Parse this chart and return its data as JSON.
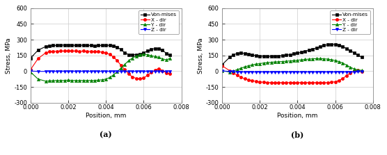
{
  "panel_a": {
    "von_mises": {
      "x": [
        0.0,
        0.0004,
        0.0008,
        0.001,
        0.0012,
        0.0014,
        0.0016,
        0.0018,
        0.002,
        0.0022,
        0.0024,
        0.0026,
        0.0028,
        0.003,
        0.0032,
        0.0034,
        0.0036,
        0.0038,
        0.004,
        0.0042,
        0.0044,
        0.0046,
        0.0048,
        0.005,
        0.0052,
        0.0054,
        0.0056,
        0.0058,
        0.006,
        0.0062,
        0.0064,
        0.0066,
        0.0068,
        0.007,
        0.0072,
        0.0074
      ],
      "y": [
        125,
        200,
        235,
        240,
        245,
        245,
        248,
        248,
        250,
        248,
        245,
        245,
        248,
        245,
        245,
        240,
        245,
        245,
        248,
        245,
        240,
        230,
        205,
        175,
        158,
        155,
        158,
        162,
        175,
        192,
        208,
        215,
        215,
        200,
        170,
        152
      ]
    },
    "x_dir": {
      "x": [
        0.0,
        0.0004,
        0.0008,
        0.001,
        0.0012,
        0.0014,
        0.0016,
        0.0018,
        0.002,
        0.0022,
        0.0024,
        0.0026,
        0.0028,
        0.003,
        0.0032,
        0.0034,
        0.0036,
        0.0038,
        0.004,
        0.0042,
        0.0044,
        0.0046,
        0.0048,
        0.005,
        0.0052,
        0.0054,
        0.0056,
        0.0058,
        0.006,
        0.0062,
        0.0064,
        0.0066,
        0.0068,
        0.007,
        0.0072,
        0.0074
      ],
      "y": [
        15,
        120,
        175,
        185,
        190,
        190,
        192,
        192,
        195,
        192,
        192,
        190,
        192,
        190,
        188,
        185,
        185,
        182,
        175,
        160,
        135,
        100,
        55,
        15,
        -25,
        -55,
        -68,
        -72,
        -65,
        -40,
        -12,
        10,
        25,
        5,
        -15,
        -22
      ]
    },
    "y_dir": {
      "x": [
        0.0,
        0.0004,
        0.0008,
        0.001,
        0.0012,
        0.0014,
        0.0016,
        0.0018,
        0.002,
        0.0022,
        0.0024,
        0.0026,
        0.0028,
        0.003,
        0.0032,
        0.0034,
        0.0036,
        0.0038,
        0.004,
        0.0042,
        0.0044,
        0.0046,
        0.0048,
        0.005,
        0.0052,
        0.0054,
        0.0056,
        0.0058,
        0.006,
        0.0062,
        0.0064,
        0.0066,
        0.0068,
        0.007,
        0.0072,
        0.0074
      ],
      "y": [
        -8,
        -75,
        -95,
        -92,
        -90,
        -88,
        -88,
        -88,
        -85,
        -88,
        -88,
        -88,
        -88,
        -88,
        -88,
        -88,
        -85,
        -82,
        -75,
        -60,
        -35,
        -5,
        30,
        65,
        100,
        125,
        145,
        158,
        162,
        158,
        148,
        140,
        132,
        118,
        108,
        122
      ]
    },
    "z_dir": {
      "x": [
        0.0,
        0.0004,
        0.0008,
        0.001,
        0.0012,
        0.0014,
        0.0016,
        0.0018,
        0.002,
        0.0022,
        0.0024,
        0.0026,
        0.0028,
        0.003,
        0.0032,
        0.0034,
        0.0036,
        0.0038,
        0.004,
        0.0042,
        0.0044,
        0.0046,
        0.0048,
        0.005,
        0.0052,
        0.0054,
        0.0056,
        0.0058,
        0.006,
        0.0062,
        0.0064,
        0.0066,
        0.0068,
        0.007,
        0.0072,
        0.0074
      ],
      "y": [
        2,
        -2,
        -2,
        -2,
        -2,
        -2,
        -2,
        -2,
        -2,
        -2,
        -2,
        -2,
        -2,
        -2,
        -2,
        -2,
        -2,
        -2,
        -2,
        -2,
        -2,
        -2,
        -2,
        -2,
        -2,
        -2,
        -2,
        -2,
        -2,
        -2,
        -2,
        -2,
        -2,
        -2,
        -2,
        -2
      ]
    }
  },
  "panel_b": {
    "von_mises": {
      "x": [
        0.0,
        0.0004,
        0.0006,
        0.0008,
        0.001,
        0.0012,
        0.0014,
        0.0016,
        0.0018,
        0.002,
        0.0022,
        0.0024,
        0.0026,
        0.0028,
        0.003,
        0.0032,
        0.0034,
        0.0036,
        0.0038,
        0.004,
        0.0042,
        0.0044,
        0.0046,
        0.0048,
        0.005,
        0.0052,
        0.0054,
        0.0056,
        0.0058,
        0.006,
        0.0062,
        0.0064,
        0.0066,
        0.0068,
        0.007,
        0.0072,
        0.0074
      ],
      "y": [
        62,
        132,
        158,
        168,
        172,
        170,
        162,
        155,
        148,
        145,
        143,
        142,
        142,
        143,
        145,
        148,
        152,
        158,
        165,
        172,
        180,
        190,
        200,
        210,
        222,
        235,
        245,
        252,
        255,
        255,
        248,
        235,
        215,
        195,
        175,
        155,
        132
      ]
    },
    "x_dir": {
      "x": [
        0.0,
        0.0004,
        0.0006,
        0.0008,
        0.001,
        0.0012,
        0.0014,
        0.0016,
        0.0018,
        0.002,
        0.0022,
        0.0024,
        0.0026,
        0.0028,
        0.003,
        0.0032,
        0.0034,
        0.0036,
        0.0038,
        0.004,
        0.0042,
        0.0044,
        0.0046,
        0.0048,
        0.005,
        0.0052,
        0.0054,
        0.0056,
        0.0058,
        0.006,
        0.0062,
        0.0064,
        0.0066,
        0.0068,
        0.007,
        0.0072,
        0.0074
      ],
      "y": [
        52,
        5,
        -18,
        -38,
        -58,
        -72,
        -82,
        -90,
        -98,
        -102,
        -105,
        -107,
        -108,
        -108,
        -108,
        -108,
        -108,
        -108,
        -108,
        -108,
        -108,
        -108,
        -108,
        -108,
        -108,
        -108,
        -108,
        -108,
        -105,
        -100,
        -88,
        -70,
        -42,
        -18,
        2,
        8,
        -2
      ]
    },
    "y_dir": {
      "x": [
        0.0,
        0.0004,
        0.0006,
        0.0008,
        0.001,
        0.0012,
        0.0014,
        0.0016,
        0.0018,
        0.002,
        0.0022,
        0.0024,
        0.0026,
        0.0028,
        0.003,
        0.0032,
        0.0034,
        0.0036,
        0.0038,
        0.004,
        0.0042,
        0.0044,
        0.0046,
        0.0048,
        0.005,
        0.0052,
        0.0054,
        0.0056,
        0.0058,
        0.006,
        0.0062,
        0.0064,
        0.0066,
        0.0068,
        0.007,
        0.0072,
        0.0074
      ],
      "y": [
        5,
        -8,
        2,
        15,
        28,
        42,
        52,
        60,
        68,
        72,
        78,
        82,
        85,
        88,
        90,
        92,
        95,
        98,
        100,
        105,
        108,
        112,
        115,
        118,
        120,
        120,
        118,
        115,
        110,
        102,
        92,
        78,
        58,
        38,
        22,
        12,
        8
      ]
    },
    "z_dir": {
      "x": [
        0.0,
        0.0004,
        0.0006,
        0.0008,
        0.001,
        0.0012,
        0.0014,
        0.0016,
        0.0018,
        0.002,
        0.0022,
        0.0024,
        0.0026,
        0.0028,
        0.003,
        0.0032,
        0.0034,
        0.0036,
        0.0038,
        0.004,
        0.0042,
        0.0044,
        0.0046,
        0.0048,
        0.005,
        0.0052,
        0.0054,
        0.0056,
        0.0058,
        0.006,
        0.0062,
        0.0064,
        0.0066,
        0.0068,
        0.007,
        0.0072,
        0.0074
      ],
      "y": [
        2,
        -2,
        -5,
        -8,
        -8,
        -8,
        -8,
        -8,
        -8,
        -8,
        -8,
        -8,
        -8,
        -8,
        -8,
        -8,
        -8,
        -8,
        -8,
        -8,
        -8,
        -8,
        -8,
        -8,
        -8,
        -8,
        -8,
        -8,
        -8,
        -8,
        -8,
        -8,
        -8,
        -8,
        -8,
        -5,
        -2
      ]
    }
  },
  "colors": {
    "von_mises": "#000000",
    "x_dir": "#ff0000",
    "y_dir": "#008000",
    "z_dir": "#0000ff"
  },
  "markers": {
    "von_mises": "s",
    "x_dir": "o",
    "y_dir": "^",
    "z_dir": "v"
  },
  "series_keys": [
    "von_mises",
    "x_dir",
    "y_dir",
    "z_dir"
  ],
  "legend_labels": [
    "Von-mises",
    "X - dir",
    "Y - dir",
    "Z - dir"
  ],
  "ylabel": "Stress, MPa",
  "xlabel": "Position, mm",
  "ylim": [
    -300,
    600
  ],
  "xlim": [
    0.0,
    0.008
  ],
  "yticks": [
    -300,
    -150,
    0,
    150,
    300,
    450,
    600
  ],
  "xticks": [
    0.0,
    0.002,
    0.004,
    0.006,
    0.008
  ],
  "label_a": "(a)",
  "label_b": "(b)",
  "bg_color": "#ffffff",
  "fig_color": "#ffffff",
  "markersize": 3.0,
  "linewidth": 0.8
}
